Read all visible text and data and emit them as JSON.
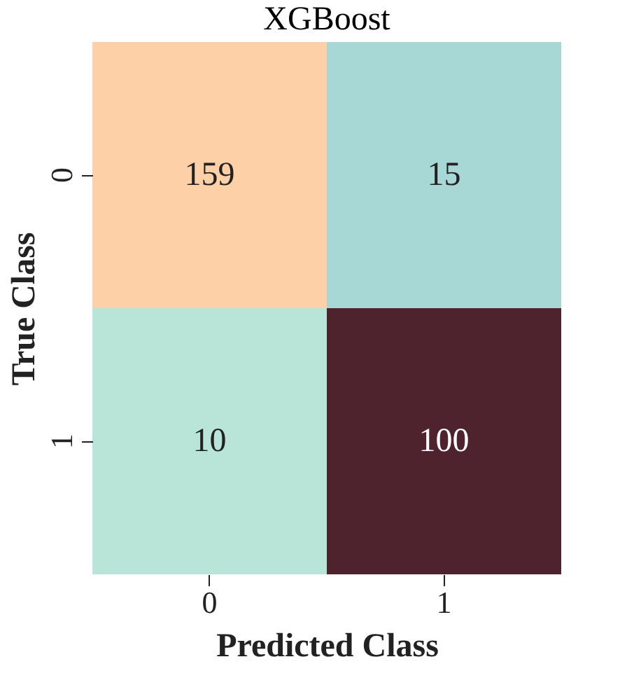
{
  "chart_data": {
    "type": "heatmap",
    "title": "XGBoost",
    "xlabel": "Predicted Class",
    "ylabel": "True Class",
    "categories": [
      "0",
      "1"
    ],
    "y_categories": [
      "0",
      "1"
    ],
    "cells": [
      [
        159,
        15
      ],
      [
        10,
        100
      ]
    ],
    "colors": [
      [
        "#fdd0a8",
        "#a7d8d6"
      ],
      [
        "#b9e5d9",
        "#4e232d"
      ]
    ],
    "data_labels": true
  }
}
